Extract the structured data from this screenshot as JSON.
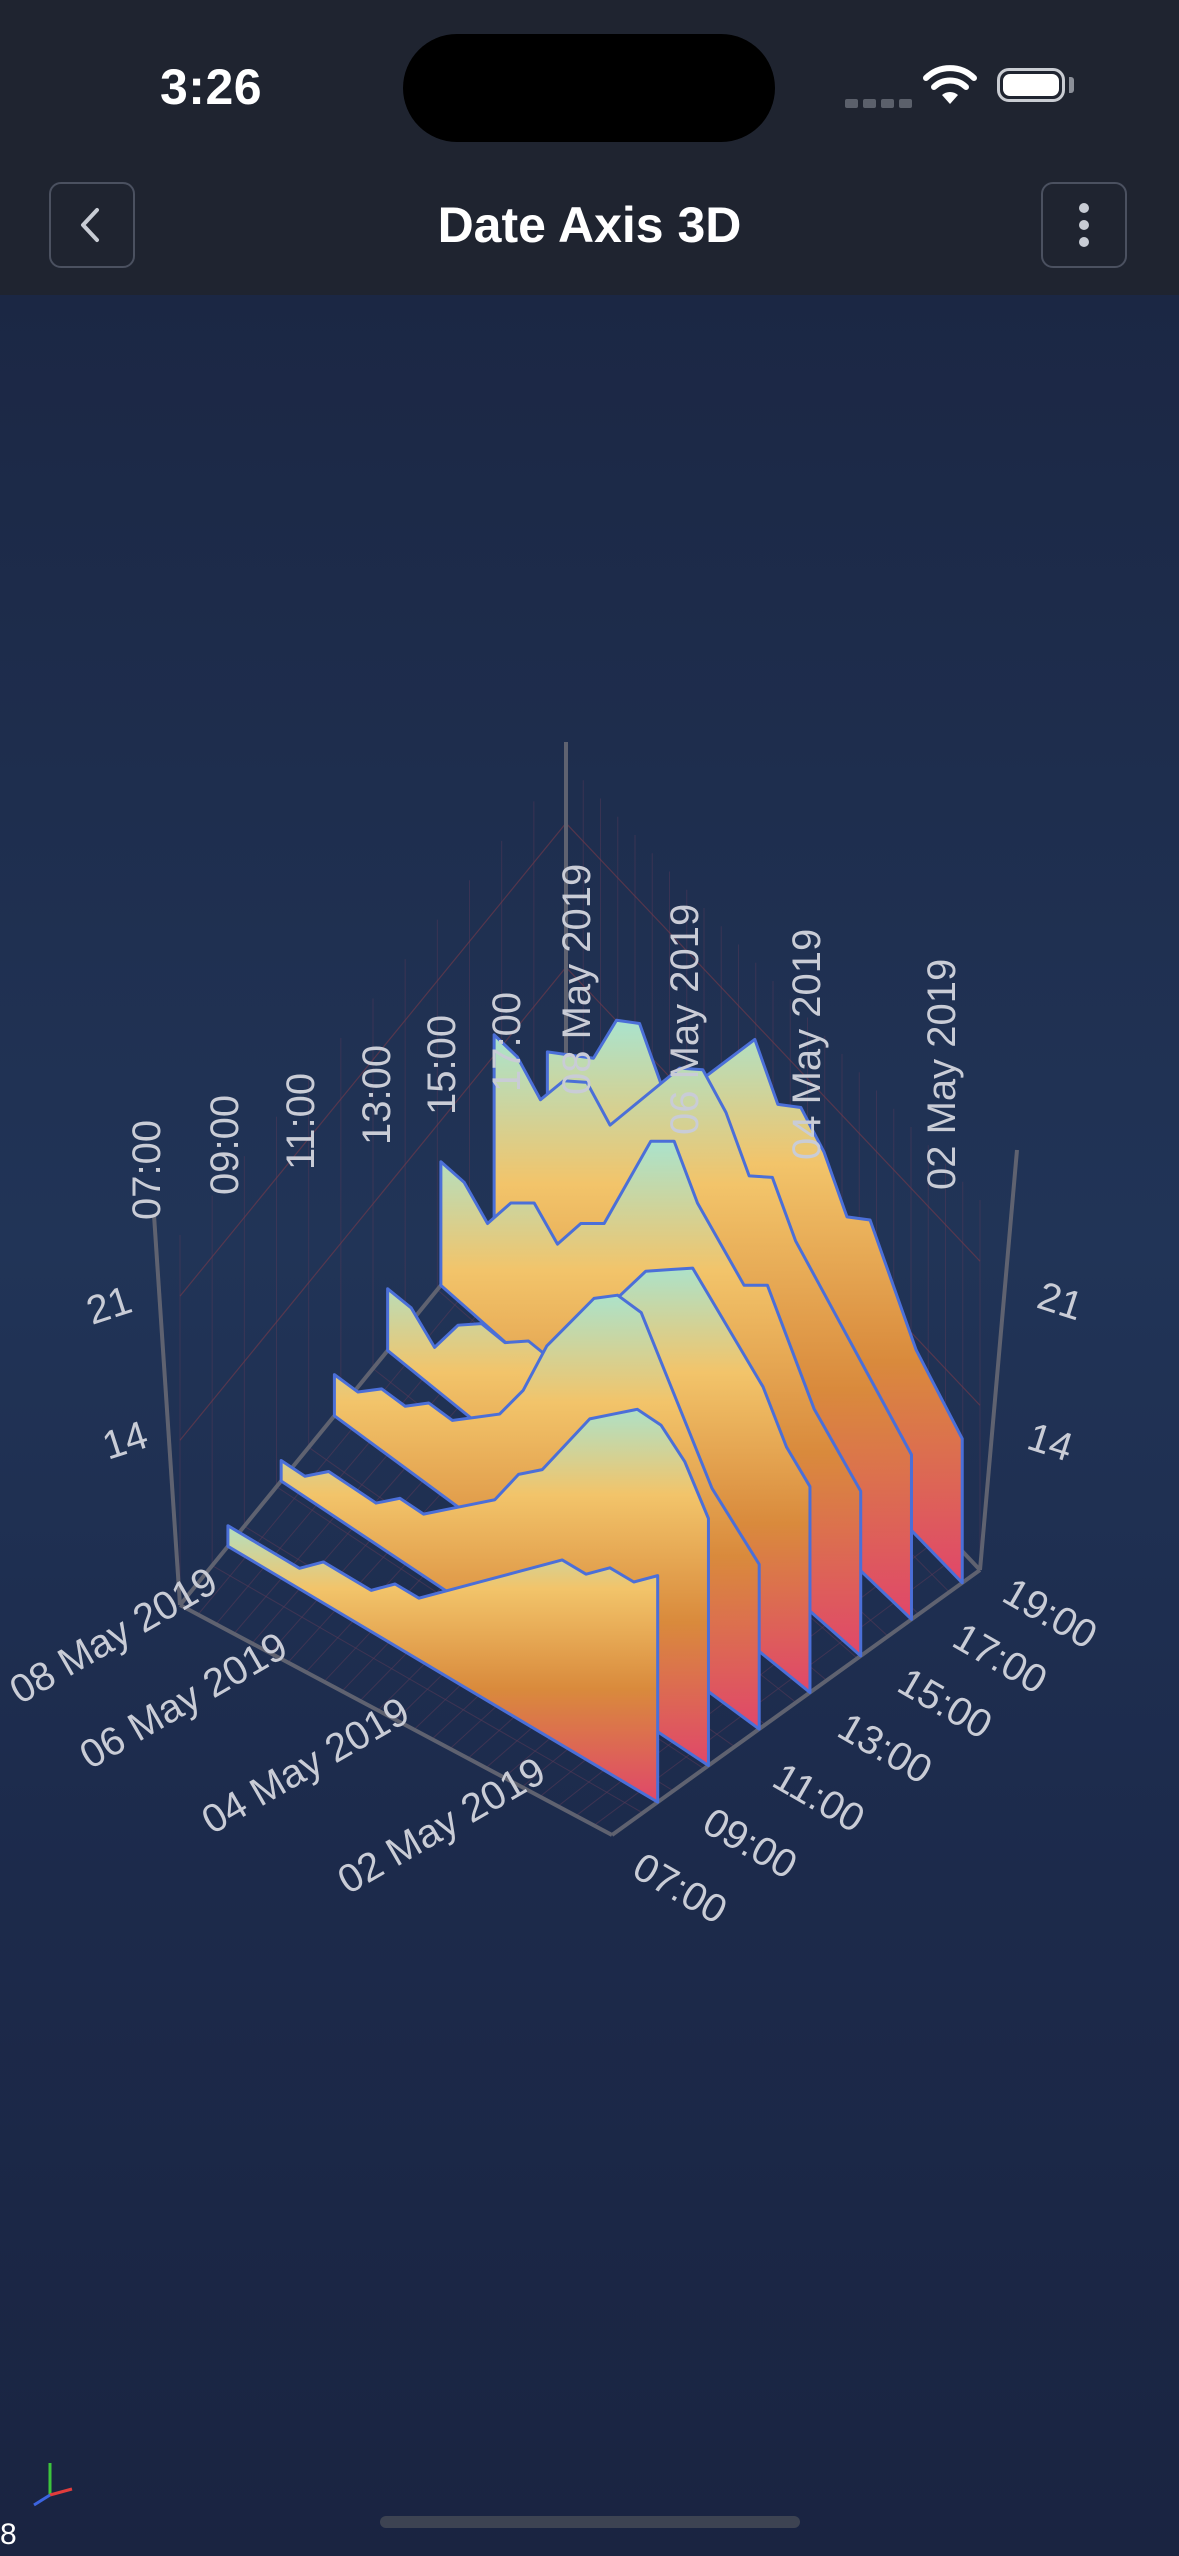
{
  "status_bar": {
    "time": "3:26"
  },
  "nav": {
    "title": "Date Axis 3D"
  },
  "fps": "8",
  "colors": {
    "background": "#1b2541",
    "bar": "#1f2430",
    "surface_top": "#9fe8dc",
    "surface_mid": "#f2c46a",
    "surface_low": "#d98a3c",
    "surface_base": "#e0476a",
    "outline": "#4b6fd8"
  },
  "chart_data": {
    "type": "area",
    "x_label": "",
    "y_label": "",
    "z_label": "",
    "x_ticks": [
      "07:00",
      "09:00",
      "11:00",
      "13:00",
      "15:00",
      "17:00",
      "19:00"
    ],
    "x_range": [
      "07:00",
      "19:00"
    ],
    "z_ticks_back": [
      "08 May 2019",
      "06 May 2019",
      "04 May 2019",
      "02 May 2019"
    ],
    "z_ticks_front": [
      "08 May 2019",
      "06 May 2019",
      "04 May 2019",
      "02 May 2019"
    ],
    "y_ticks": [
      "14",
      "21"
    ],
    "y_range": [
      6,
      23
    ],
    "grid": true,
    "series": [
      {
        "date": "08 May 2019",
        "values": [
          11,
          12,
          13,
          16,
          17,
          15,
          16,
          18,
          20,
          22,
          20,
          21,
          20,
          18,
          19,
          17,
          15,
          14,
          13
        ]
      },
      {
        "date": "07 May 2019",
        "values": [
          15,
          15,
          14,
          16,
          17,
          16,
          18,
          20,
          22,
          23,
          22,
          20,
          21,
          19,
          18,
          17,
          16,
          15,
          14
        ]
      },
      {
        "date": "06 May 2019",
        "values": [
          12,
          12,
          11,
          13,
          14,
          13,
          15,
          16,
          19,
          22,
          23,
          21,
          20,
          19,
          20,
          18,
          16,
          15,
          14
        ]
      },
      {
        "date": "05 May 2019",
        "values": [
          9,
          9,
          8,
          10,
          11,
          11,
          12,
          12,
          14,
          16,
          18,
          20,
          21,
          22,
          21,
          20,
          19,
          17,
          16
        ]
      },
      {
        "date": "04 May 2019",
        "values": [
          8,
          8,
          9,
          9,
          10,
          10,
          11,
          12,
          14,
          17,
          19,
          21,
          22,
          22,
          20,
          18,
          16,
          15,
          14
        ]
      },
      {
        "date": "03 May 2019",
        "values": [
          7,
          7,
          8,
          8,
          8,
          9,
          9,
          10,
          11,
          12,
          14,
          15,
          17,
          19,
          20,
          21,
          21,
          20,
          18
        ]
      },
      {
        "date": "02 May 2019",
        "values": [
          7,
          7,
          7,
          7,
          8,
          8,
          8,
          9,
          9,
          10,
          11,
          12,
          13,
          14,
          15,
          15,
          16,
          16,
          17
        ]
      }
    ]
  }
}
